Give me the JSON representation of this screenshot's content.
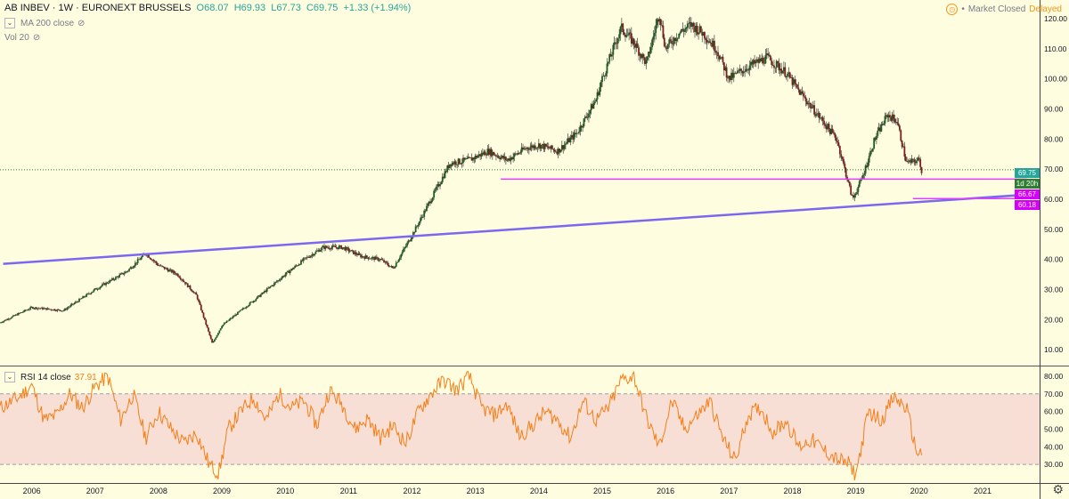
{
  "header": {
    "symbol_line": "AB INBEV · 1W · EURONEXT BRUSSELS",
    "open": "O68.07",
    "high": "H69.93",
    "low": "L67.73",
    "close": "C69.75",
    "change": "+1.33 (+1.94%)",
    "indicator_ma": "MA 200 close",
    "indicator_vol": "Vol 20",
    "market_status": "Market Closed",
    "delayed": "Delayed"
  },
  "rsi_legend": {
    "label": "RSI 14 close",
    "value": "37.91"
  },
  "price_badges": {
    "last": "69.75",
    "countdown": "1d 20h",
    "level1": "66.67",
    "level2": "60.18"
  },
  "colors": {
    "background": "#fffde0",
    "up": "#26a69a",
    "down": "#ef5350",
    "trendline": "#7b68ee",
    "support": "#e040fb",
    "rsi_line": "#f57f17",
    "rsi_band": "#f3d2d2"
  },
  "chart_data": [
    {
      "type": "line",
      "title": "AB INBEV · 1W · EURONEXT BRUSSELS",
      "x_tick_labels": [
        "2006",
        "2007",
        "2008",
        "2009",
        "2010",
        "2011",
        "2012",
        "2013",
        "2014",
        "2015",
        "2016",
        "2017",
        "2018",
        "2019",
        "2020",
        "2021"
      ],
      "y_tick_labels": [
        "10.00",
        "20.00",
        "30.00",
        "40.00",
        "50.00",
        "60.00",
        "70.00",
        "80.00",
        "90.00",
        "100.00",
        "110.00",
        "120.00"
      ],
      "ylim": [
        5,
        125
      ],
      "series": [
        {
          "x": [
            2005.5,
            2006.0,
            2006.5,
            2007.0,
            2007.5,
            2007.8,
            2008.0,
            2008.3,
            2008.6,
            2008.85,
            2009.0,
            2009.3,
            2009.6,
            2010.0,
            2010.3,
            2010.6,
            2010.9,
            2011.2,
            2011.5,
            2011.7,
            2012.0,
            2012.3,
            2012.6,
            2012.9,
            2013.2,
            2013.5,
            2013.8,
            2014.0,
            2014.3,
            2014.6,
            2014.9,
            2015.0,
            2015.3,
            2015.5,
            2015.7,
            2015.9,
            2016.0,
            2016.2,
            2016.4,
            2016.6,
            2016.8,
            2017.0,
            2017.3,
            2017.6,
            2017.9,
            2018.1,
            2018.4,
            2018.7,
            2018.95,
            2019.1,
            2019.3,
            2019.5,
            2019.65,
            2019.8,
            2020.0,
            2020.05
          ],
          "values": [
            19,
            24,
            23,
            30,
            36,
            42,
            38,
            35,
            28,
            12,
            18,
            23,
            28,
            35,
            40,
            44,
            44,
            41,
            40,
            37,
            48,
            60,
            72,
            73,
            76,
            73,
            77,
            78,
            76,
            82,
            93,
            100,
            117,
            112,
            105,
            122,
            110,
            115,
            118,
            115,
            110,
            100,
            104,
            107,
            102,
            96,
            88,
            80,
            60,
            67,
            80,
            88,
            86,
            72,
            73,
            68.5
          ]
        }
      ],
      "lines": [
        {
          "name": "trendline",
          "x": [
            2005.55,
            2021.7
          ],
          "y": [
            38.5,
            61.5
          ]
        },
        {
          "name": "support-66.67",
          "x": [
            2013.4,
            2021.7
          ],
          "y": [
            66.67,
            66.67
          ]
        },
        {
          "name": "support-60.18",
          "x": [
            2019.9,
            2021.7
          ],
          "y": [
            60.18,
            60.18
          ]
        }
      ],
      "last_price": 69.75
    },
    {
      "type": "line",
      "y_tick_labels": [
        "30.00",
        "40.00",
        "50.00",
        "60.00",
        "70.00",
        "80.00"
      ],
      "ylim": [
        20,
        85
      ],
      "band": [
        30,
        70
      ],
      "series": [
        {
          "x": [
            2005.5,
            2005.8,
            2006.0,
            2006.2,
            2006.4,
            2006.6,
            2006.8,
            2007.0,
            2007.2,
            2007.4,
            2007.6,
            2007.8,
            2008.0,
            2008.2,
            2008.4,
            2008.6,
            2008.8,
            2008.95,
            2009.1,
            2009.3,
            2009.5,
            2009.7,
            2009.9,
            2010.1,
            2010.3,
            2010.5,
            2010.7,
            2010.9,
            2011.1,
            2011.3,
            2011.5,
            2011.7,
            2011.9,
            2012.1,
            2012.3,
            2012.5,
            2012.7,
            2012.9,
            2013.1,
            2013.3,
            2013.5,
            2013.7,
            2013.9,
            2014.1,
            2014.3,
            2014.5,
            2014.7,
            2014.9,
            2015.1,
            2015.3,
            2015.5,
            2015.7,
            2015.9,
            2016.1,
            2016.3,
            2016.5,
            2016.7,
            2016.9,
            2017.1,
            2017.3,
            2017.5,
            2017.7,
            2017.9,
            2018.1,
            2018.3,
            2018.5,
            2018.7,
            2018.9,
            2019.0,
            2019.2,
            2019.4,
            2019.6,
            2019.8,
            2019.95,
            2020.05
          ],
          "values": [
            62,
            68,
            75,
            55,
            58,
            70,
            62,
            74,
            80,
            55,
            70,
            45,
            60,
            50,
            42,
            48,
            30,
            25,
            50,
            60,
            68,
            55,
            70,
            62,
            66,
            52,
            72,
            64,
            50,
            56,
            45,
            52,
            42,
            60,
            70,
            78,
            72,
            80,
            62,
            58,
            64,
            46,
            52,
            60,
            55,
            45,
            66,
            55,
            62,
            78,
            80,
            56,
            40,
            66,
            50,
            58,
            66,
            45,
            32,
            58,
            62,
            48,
            55,
            40,
            44,
            38,
            33,
            30,
            24,
            60,
            55,
            68,
            62,
            38,
            36
          ]
        }
      ]
    }
  ]
}
